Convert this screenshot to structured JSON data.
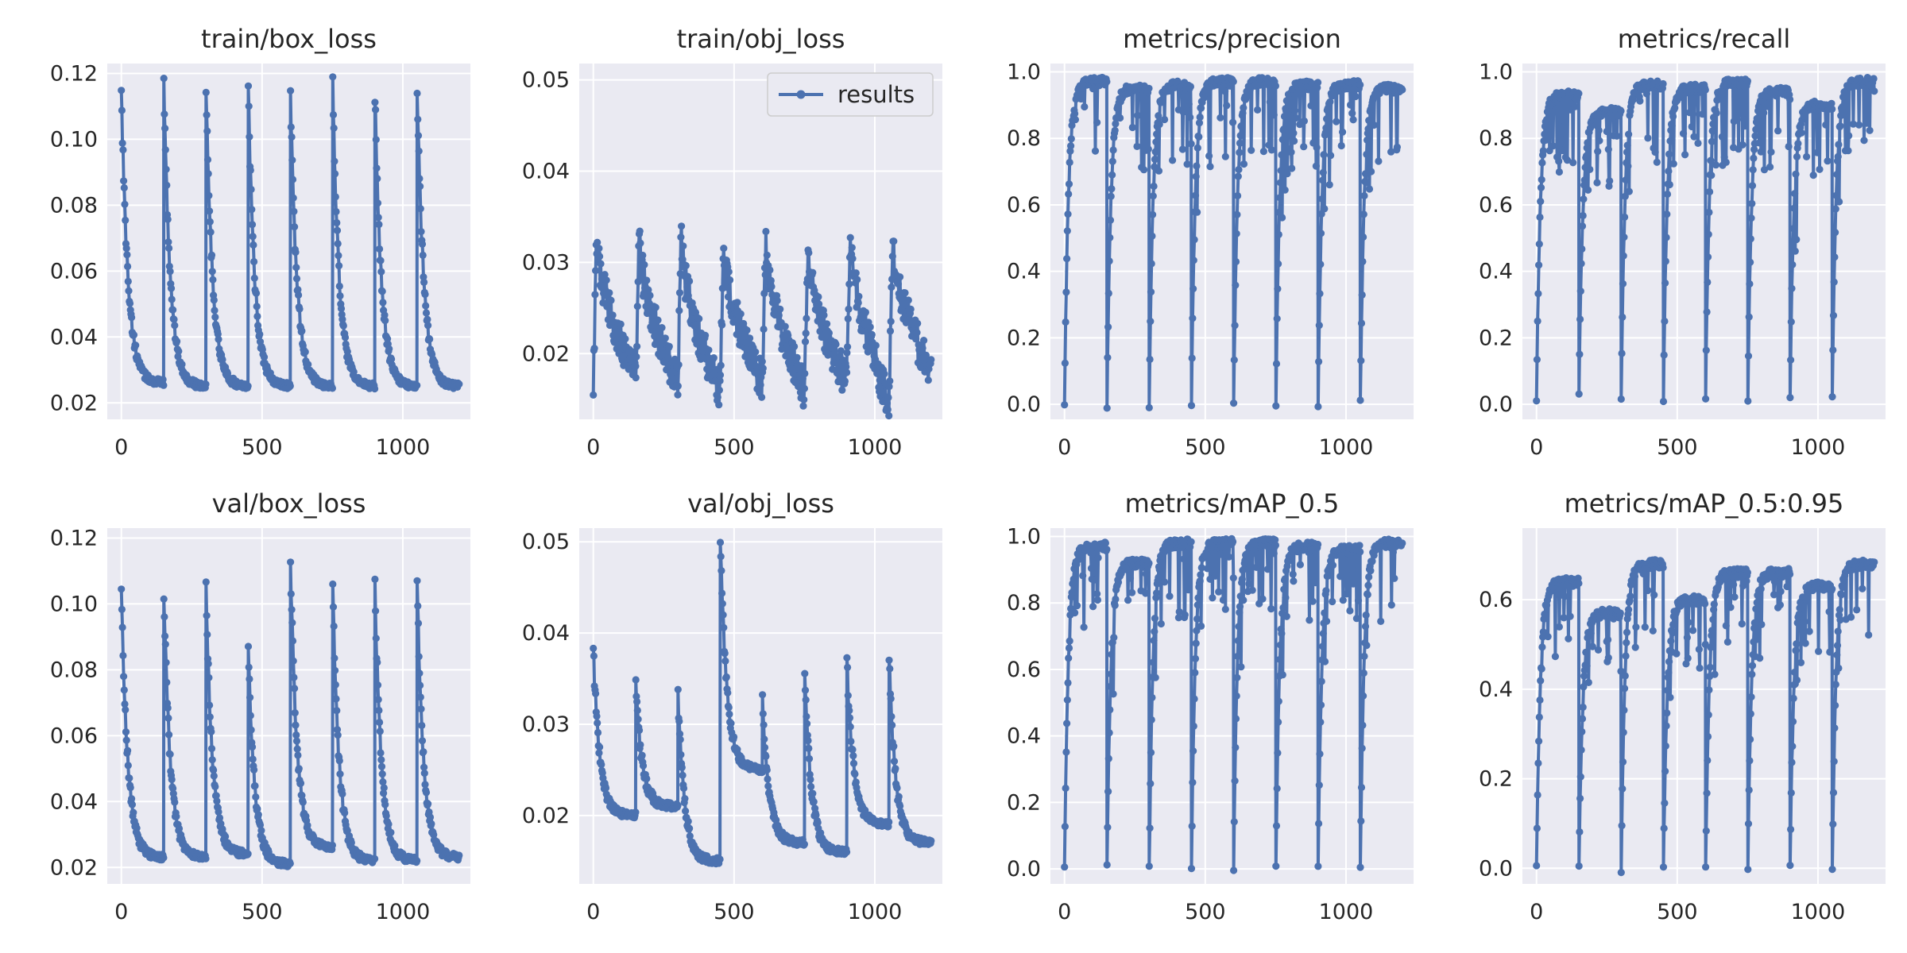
{
  "figure": {
    "background": "#ffffff",
    "axes_background": "#eaeaf2",
    "grid_color": "#ffffff",
    "series_color": "#4c72b0"
  },
  "chart_data": [
    {
      "type": "line",
      "title": "train/box_loss",
      "ylim": [
        0.015,
        0.123
      ],
      "xlim": [
        -50,
        1240
      ],
      "yticks": [
        0.02,
        0.04,
        0.06,
        0.08,
        0.1,
        0.12
      ],
      "ytick_labels": [
        "0.02",
        "0.04",
        "0.06",
        "0.08",
        "0.10",
        "0.12"
      ],
      "xticks": [
        0,
        500,
        1000
      ],
      "xtick_labels": [
        "0",
        "500",
        "1000"
      ],
      "grid": true,
      "series": [
        {
          "name": "results",
          "segments": [
            {
              "x0": 0,
              "x1": 150,
              "y0": 0.116,
              "y1": 0.026
            },
            {
              "x0": 151,
              "x1": 300,
              "y0": 0.117,
              "y1": 0.025
            },
            {
              "x0": 301,
              "x1": 450,
              "y0": 0.116,
              "y1": 0.025
            },
            {
              "x0": 451,
              "x1": 600,
              "y0": 0.115,
              "y1": 0.025
            },
            {
              "x0": 601,
              "x1": 750,
              "y0": 0.113,
              "y1": 0.025
            },
            {
              "x0": 751,
              "x1": 900,
              "y0": 0.116,
              "y1": 0.025
            },
            {
              "x0": 901,
              "x1": 1050,
              "y0": 0.114,
              "y1": 0.025
            },
            {
              "x0": 1051,
              "x1": 1200,
              "y0": 0.116,
              "y1": 0.025
            }
          ]
        }
      ]
    },
    {
      "type": "line",
      "title": "train/obj_loss",
      "ylim": [
        0.0128,
        0.0518
      ],
      "xlim": [
        -50,
        1240
      ],
      "yticks": [
        0.02,
        0.03,
        0.04,
        0.05
      ],
      "ytick_labels": [
        "0.02",
        "0.03",
        "0.04",
        "0.05"
      ],
      "xticks": [
        0,
        500,
        1000
      ],
      "xtick_labels": [
        "0",
        "500",
        "1000"
      ],
      "grid": true,
      "legend": {
        "label": "results",
        "position": "upper right"
      },
      "series": [
        {
          "name": "results",
          "segments": [
            {
              "x0": 0,
              "x1": 150,
              "y0": 0.016,
              "y1": 0.018,
              "peak": 0.033
            },
            {
              "x0": 151,
              "x1": 300,
              "y0": 0.017,
              "y1": 0.017,
              "peak": 0.033
            },
            {
              "x0": 301,
              "x1": 450,
              "y0": 0.018,
              "y1": 0.016,
              "peak": 0.033
            },
            {
              "x0": 451,
              "x1": 600,
              "y0": 0.017,
              "y1": 0.017,
              "peak": 0.032
            },
            {
              "x0": 601,
              "x1": 750,
              "y0": 0.016,
              "y1": 0.016,
              "peak": 0.033
            },
            {
              "x0": 751,
              "x1": 900,
              "y0": 0.018,
              "y1": 0.017,
              "peak": 0.032
            },
            {
              "x0": 901,
              "x1": 1050,
              "y0": 0.019,
              "y1": 0.015,
              "peak": 0.034
            },
            {
              "x0": 1051,
              "x1": 1200,
              "y0": 0.015,
              "y1": 0.018,
              "peak": 0.033
            }
          ]
        }
      ]
    },
    {
      "type": "line",
      "title": "metrics/precision",
      "ylim": [
        -0.045,
        1.025
      ],
      "xlim": [
        -50,
        1240
      ],
      "yticks": [
        0.0,
        0.2,
        0.4,
        0.6,
        0.8,
        1.0
      ],
      "ytick_labels": [
        "0.0",
        "0.2",
        "0.4",
        "0.6",
        "0.8",
        "1.0"
      ],
      "xticks": [
        0,
        500,
        1000
      ],
      "xtick_labels": [
        "0",
        "500",
        "1000"
      ],
      "grid": true,
      "series": [
        {
          "name": "results",
          "segments": [
            {
              "x0": 0,
              "x1": 150,
              "y0": 0.0,
              "y1": 0.97
            },
            {
              "x0": 151,
              "x1": 300,
              "y0": 0.0,
              "y1": 0.95
            },
            {
              "x0": 301,
              "x1": 450,
              "y0": 0.0,
              "y1": 0.96
            },
            {
              "x0": 451,
              "x1": 600,
              "y0": 0.0,
              "y1": 0.97
            },
            {
              "x0": 601,
              "x1": 750,
              "y0": 0.0,
              "y1": 0.97
            },
            {
              "x0": 751,
              "x1": 900,
              "y0": 0.0,
              "y1": 0.96
            },
            {
              "x0": 901,
              "x1": 1050,
              "y0": 0.0,
              "y1": 0.96
            },
            {
              "x0": 1051,
              "x1": 1200,
              "y0": 0.0,
              "y1": 0.95
            }
          ]
        }
      ]
    },
    {
      "type": "line",
      "title": "metrics/recall",
      "ylim": [
        -0.045,
        1.025
      ],
      "xlim": [
        -50,
        1240
      ],
      "yticks": [
        0.0,
        0.2,
        0.4,
        0.6,
        0.8,
        1.0
      ],
      "ytick_labels": [
        "0.0",
        "0.2",
        "0.4",
        "0.6",
        "0.8",
        "1.0"
      ],
      "xticks": [
        0,
        500,
        1000
      ],
      "xtick_labels": [
        "0",
        "500",
        "1000"
      ],
      "grid": true,
      "series": [
        {
          "name": "results",
          "segments": [
            {
              "x0": 0,
              "x1": 150,
              "y0": 0.01,
              "y1": 0.93
            },
            {
              "x0": 151,
              "x1": 300,
              "y0": 0.03,
              "y1": 0.88
            },
            {
              "x0": 301,
              "x1": 450,
              "y0": 0.02,
              "y1": 0.96
            },
            {
              "x0": 451,
              "x1": 600,
              "y0": 0.02,
              "y1": 0.95
            },
            {
              "x0": 601,
              "x1": 750,
              "y0": 0.02,
              "y1": 0.97
            },
            {
              "x0": 751,
              "x1": 900,
              "y0": 0.02,
              "y1": 0.94
            },
            {
              "x0": 901,
              "x1": 1050,
              "y0": 0.02,
              "y1": 0.9
            },
            {
              "x0": 1051,
              "x1": 1200,
              "y0": 0.02,
              "y1": 0.97
            }
          ]
        }
      ]
    },
    {
      "type": "line",
      "title": "val/box_loss",
      "ylim": [
        0.015,
        0.123
      ],
      "xlim": [
        -50,
        1240
      ],
      "yticks": [
        0.02,
        0.04,
        0.06,
        0.08,
        0.1,
        0.12
      ],
      "ytick_labels": [
        "0.02",
        "0.04",
        "0.06",
        "0.08",
        "0.10",
        "0.12"
      ],
      "xticks": [
        0,
        500,
        1000
      ],
      "xtick_labels": [
        "0",
        "500",
        "1000"
      ],
      "grid": true,
      "series": [
        {
          "name": "results",
          "segments": [
            {
              "x0": 0,
              "x1": 150,
              "y0": 0.104,
              "y1": 0.023
            },
            {
              "x0": 151,
              "x1": 300,
              "y0": 0.104,
              "y1": 0.023
            },
            {
              "x0": 301,
              "x1": 450,
              "y0": 0.104,
              "y1": 0.024
            },
            {
              "x0": 451,
              "x1": 600,
              "y0": 0.087,
              "y1": 0.021
            },
            {
              "x0": 601,
              "x1": 750,
              "y0": 0.113,
              "y1": 0.026
            },
            {
              "x0": 751,
              "x1": 900,
              "y0": 0.104,
              "y1": 0.022
            },
            {
              "x0": 901,
              "x1": 1050,
              "y0": 0.105,
              "y1": 0.022
            },
            {
              "x0": 1051,
              "x1": 1200,
              "y0": 0.105,
              "y1": 0.023
            }
          ]
        }
      ]
    },
    {
      "type": "line",
      "title": "val/obj_loss",
      "ylim": [
        0.0125,
        0.0515
      ],
      "xlim": [
        -50,
        1240
      ],
      "yticks": [
        0.02,
        0.03,
        0.04,
        0.05
      ],
      "ytick_labels": [
        "0.02",
        "0.03",
        "0.04",
        "0.05"
      ],
      "xticks": [
        0,
        500,
        1000
      ],
      "xtick_labels": [
        "0",
        "500",
        "1000"
      ],
      "grid": true,
      "series": [
        {
          "name": "results",
          "segments": [
            {
              "x0": 0,
              "x1": 150,
              "y0": 0.038,
              "y1": 0.02
            },
            {
              "x0": 151,
              "x1": 300,
              "y0": 0.034,
              "y1": 0.021
            },
            {
              "x0": 301,
              "x1": 450,
              "y0": 0.033,
              "y1": 0.015
            },
            {
              "x0": 451,
              "x1": 600,
              "y0": 0.05,
              "y1": 0.025
            },
            {
              "x0": 601,
              "x1": 750,
              "y0": 0.033,
              "y1": 0.017
            },
            {
              "x0": 751,
              "x1": 900,
              "y0": 0.036,
              "y1": 0.016
            },
            {
              "x0": 901,
              "x1": 1050,
              "y0": 0.037,
              "y1": 0.019
            },
            {
              "x0": 1051,
              "x1": 1200,
              "y0": 0.037,
              "y1": 0.017
            }
          ]
        }
      ]
    },
    {
      "type": "line",
      "title": "metrics/mAP_0.5",
      "ylim": [
        -0.045,
        1.025
      ],
      "xlim": [
        -50,
        1240
      ],
      "yticks": [
        0.0,
        0.2,
        0.4,
        0.6,
        0.8,
        1.0
      ],
      "ytick_labels": [
        "0.0",
        "0.2",
        "0.4",
        "0.6",
        "0.8",
        "1.0"
      ],
      "xticks": [
        0,
        500,
        1000
      ],
      "xtick_labels": [
        "0",
        "500",
        "1000"
      ],
      "grid": true,
      "series": [
        {
          "name": "results",
          "segments": [
            {
              "x0": 0,
              "x1": 150,
              "y0": 0.0,
              "y1": 0.97
            },
            {
              "x0": 151,
              "x1": 300,
              "y0": 0.0,
              "y1": 0.92
            },
            {
              "x0": 301,
              "x1": 450,
              "y0": 0.0,
              "y1": 0.98
            },
            {
              "x0": 451,
              "x1": 600,
              "y0": 0.0,
              "y1": 0.98
            },
            {
              "x0": 601,
              "x1": 750,
              "y0": 0.0,
              "y1": 0.98
            },
            {
              "x0": 751,
              "x1": 900,
              "y0": 0.0,
              "y1": 0.97
            },
            {
              "x0": 901,
              "x1": 1050,
              "y0": 0.0,
              "y1": 0.96
            },
            {
              "x0": 1051,
              "x1": 1200,
              "y0": 0.0,
              "y1": 0.98
            }
          ]
        }
      ]
    },
    {
      "type": "line",
      "title": "metrics/mAP_0.5:0.95",
      "ylim": [
        -0.035,
        0.76
      ],
      "xlim": [
        -50,
        1240
      ],
      "yticks": [
        0.0,
        0.2,
        0.4,
        0.6
      ],
      "ytick_labels": [
        "0.0",
        "0.2",
        "0.4",
        "0.6"
      ],
      "xticks": [
        0,
        500,
        1000
      ],
      "xtick_labels": [
        "0",
        "500",
        "1000"
      ],
      "grid": true,
      "series": [
        {
          "name": "results",
          "segments": [
            {
              "x0": 0,
              "x1": 150,
              "y0": 0.0,
              "y1": 0.64
            },
            {
              "x0": 151,
              "x1": 300,
              "y0": 0.0,
              "y1": 0.57
            },
            {
              "x0": 301,
              "x1": 450,
              "y0": 0.0,
              "y1": 0.68
            },
            {
              "x0": 451,
              "x1": 600,
              "y0": 0.0,
              "y1": 0.6
            },
            {
              "x0": 601,
              "x1": 750,
              "y0": 0.0,
              "y1": 0.66
            },
            {
              "x0": 751,
              "x1": 900,
              "y0": 0.0,
              "y1": 0.66
            },
            {
              "x0": 901,
              "x1": 1050,
              "y0": 0.0,
              "y1": 0.63
            },
            {
              "x0": 1051,
              "x1": 1200,
              "y0": 0.0,
              "y1": 0.68
            }
          ]
        }
      ]
    }
  ]
}
